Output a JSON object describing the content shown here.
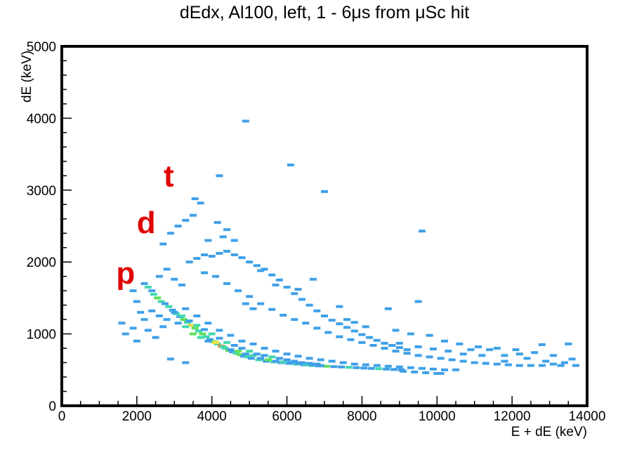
{
  "chart_data": {
    "type": "heatmap",
    "title": "dEdx, Al100, left, 1 - 6μs from μSc hit",
    "xlabel": "E + dE (keV)",
    "ylabel": "dE (keV)",
    "xlim": [
      0,
      14000
    ],
    "ylim": [
      0,
      5000
    ],
    "x_ticks": [
      "0",
      "2000",
      "4000",
      "6000",
      "8000",
      "10000",
      "12000",
      "14000"
    ],
    "y_ticks": [
      "0",
      "1000",
      "2000",
      "3000",
      "4000",
      "5000"
    ],
    "annotations": [
      {
        "text": "p",
        "x": 1700,
        "y": 1700
      },
      {
        "text": "d",
        "x": 2250,
        "y": 2400
      },
      {
        "text": "t",
        "x": 2850,
        "y": 3050
      }
    ],
    "color_scale": [
      "#3fa0e8",
      "#45d8b0",
      "#5ee05a",
      "#f0e040",
      "#f08a30",
      "#e83020"
    ],
    "bins": [
      [
        2200,
        1700,
        1
      ],
      [
        2300,
        1650,
        2
      ],
      [
        2400,
        1600,
        1
      ],
      [
        2450,
        1550,
        2
      ],
      [
        2550,
        1500,
        3
      ],
      [
        2650,
        1450,
        2
      ],
      [
        2750,
        1420,
        1
      ],
      [
        2850,
        1380,
        2
      ],
      [
        2950,
        1330,
        1
      ],
      [
        3050,
        1280,
        2
      ],
      [
        3150,
        1240,
        1
      ],
      [
        3250,
        1200,
        3
      ],
      [
        3350,
        1160,
        2
      ],
      [
        3450,
        1120,
        4
      ],
      [
        3550,
        1080,
        3
      ],
      [
        3650,
        1040,
        2
      ],
      [
        3750,
        1000,
        3
      ],
      [
        3850,
        960,
        2
      ],
      [
        3950,
        920,
        1
      ],
      [
        4050,
        890,
        3
      ],
      [
        4150,
        860,
        2
      ],
      [
        4250,
        830,
        5
      ],
      [
        4350,
        800,
        2
      ],
      [
        4450,
        770,
        3
      ],
      [
        4550,
        750,
        1
      ],
      [
        4650,
        730,
        2
      ],
      [
        4750,
        710,
        3
      ],
      [
        4850,
        690,
        1
      ],
      [
        4950,
        680,
        2
      ],
      [
        5050,
        660,
        1
      ],
      [
        5250,
        640,
        2
      ],
      [
        5450,
        620,
        1
      ],
      [
        5650,
        610,
        2
      ],
      [
        5850,
        600,
        1
      ],
      [
        6050,
        590,
        1
      ],
      [
        6250,
        580,
        2
      ],
      [
        6450,
        570,
        1
      ],
      [
        6650,
        560,
        2
      ],
      [
        6850,
        555,
        1
      ],
      [
        7050,
        550,
        3
      ],
      [
        7250,
        545,
        1
      ],
      [
        7450,
        540,
        1
      ],
      [
        7650,
        535,
        2
      ],
      [
        7850,
        530,
        1
      ],
      [
        8050,
        525,
        1
      ],
      [
        8250,
        520,
        1
      ],
      [
        8450,
        515,
        2
      ],
      [
        8650,
        510,
        1
      ],
      [
        8850,
        505,
        1
      ],
      [
        9050,
        500,
        1
      ],
      [
        3100,
        1150,
        1
      ],
      [
        3300,
        1100,
        2
      ],
      [
        3500,
        1000,
        3
      ],
      [
        3700,
        950,
        2
      ],
      [
        3900,
        900,
        1
      ],
      [
        4100,
        880,
        4
      ],
      [
        4300,
        820,
        2
      ],
      [
        4500,
        780,
        1
      ],
      [
        4700,
        760,
        3
      ],
      [
        4900,
        720,
        1
      ],
      [
        5100,
        700,
        2
      ],
      [
        5300,
        660,
        1
      ],
      [
        5500,
        640,
        3
      ],
      [
        5700,
        620,
        1
      ],
      [
        5900,
        610,
        2
      ],
      [
        6100,
        600,
        1
      ],
      [
        6300,
        590,
        1
      ],
      [
        6500,
        580,
        2
      ],
      [
        6700,
        570,
        1
      ],
      [
        6900,
        560,
        1
      ],
      [
        3000,
        1300,
        1
      ],
      [
        3200,
        1250,
        2
      ],
      [
        3400,
        1180,
        1
      ],
      [
        3600,
        1120,
        2
      ],
      [
        3800,
        1060,
        1
      ],
      [
        4000,
        1000,
        2
      ],
      [
        4200,
        940,
        1
      ],
      [
        4400,
        880,
        2
      ],
      [
        4600,
        840,
        1
      ],
      [
        4800,
        800,
        1
      ],
      [
        5000,
        760,
        2
      ],
      [
        5200,
        720,
        1
      ],
      [
        5400,
        700,
        1
      ],
      [
        5600,
        680,
        2
      ],
      [
        5800,
        660,
        1
      ],
      [
        6000,
        640,
        1
      ],
      [
        6200,
        620,
        1
      ],
      [
        6400,
        600,
        1
      ],
      [
        6600,
        590,
        1
      ],
      [
        6800,
        580,
        1
      ],
      [
        3300,
        1350,
        1
      ],
      [
        3600,
        1250,
        1
      ],
      [
        3900,
        1150,
        1
      ],
      [
        4200,
        1050,
        1
      ],
      [
        4500,
        980,
        1
      ],
      [
        4800,
        900,
        1
      ],
      [
        5100,
        860,
        1
      ],
      [
        5400,
        800,
        1
      ],
      [
        5700,
        760,
        1
      ],
      [
        6000,
        720,
        1
      ],
      [
        6300,
        690,
        1
      ],
      [
        6600,
        660,
        1
      ],
      [
        6900,
        640,
        1
      ],
      [
        7200,
        620,
        1
      ],
      [
        7500,
        600,
        1
      ],
      [
        7800,
        580,
        1
      ],
      [
        8100,
        570,
        1
      ],
      [
        8400,
        560,
        1
      ],
      [
        8700,
        550,
        1
      ],
      [
        9000,
        540,
        1
      ],
      [
        9300,
        530,
        1
      ],
      [
        9600,
        520,
        1
      ],
      [
        9900,
        510,
        1
      ],
      [
        10200,
        500,
        1
      ],
      [
        10500,
        500,
        1
      ],
      [
        10000,
        450,
        1
      ],
      [
        10100,
        450,
        1
      ],
      [
        9700,
        460,
        1
      ],
      [
        9400,
        470,
        1
      ],
      [
        9100,
        480,
        1
      ],
      [
        3400,
        2000,
        1
      ],
      [
        3600,
        2050,
        1
      ],
      [
        3800,
        2100,
        1
      ],
      [
        4000,
        2080,
        1
      ],
      [
        4200,
        2120,
        1
      ],
      [
        4400,
        2150,
        1
      ],
      [
        4600,
        2100,
        1
      ],
      [
        4800,
        2060,
        1
      ],
      [
        5000,
        2000,
        1
      ],
      [
        5200,
        1950,
        1
      ],
      [
        5400,
        1900,
        1
      ],
      [
        5600,
        1820,
        1
      ],
      [
        5800,
        1750,
        1
      ],
      [
        6000,
        1650,
        1
      ],
      [
        6200,
        1560,
        1
      ],
      [
        6400,
        1480,
        1
      ],
      [
        6600,
        1400,
        1
      ],
      [
        6800,
        1320,
        1
      ],
      [
        7000,
        1250,
        1
      ],
      [
        7200,
        1190,
        1
      ],
      [
        7400,
        1140,
        1
      ],
      [
        7600,
        1090,
        1
      ],
      [
        7800,
        1040,
        1
      ],
      [
        8000,
        990,
        1
      ],
      [
        8200,
        950,
        1
      ],
      [
        8400,
        910,
        1
      ],
      [
        8600,
        870,
        1
      ],
      [
        8800,
        840,
        1
      ],
      [
        9000,
        810,
        1
      ],
      [
        9200,
        780,
        1
      ],
      [
        3800,
        1850,
        1
      ],
      [
        4100,
        1800,
        1
      ],
      [
        4400,
        1700,
        1
      ],
      [
        4700,
        1600,
        1
      ],
      [
        5000,
        1520,
        1
      ],
      [
        5300,
        1420,
        1
      ],
      [
        5600,
        1340,
        1
      ],
      [
        5900,
        1260,
        1
      ],
      [
        6200,
        1200,
        1
      ],
      [
        6500,
        1150,
        1
      ],
      [
        6800,
        1080,
        1
      ],
      [
        7100,
        1020,
        1
      ],
      [
        7400,
        960,
        1
      ],
      [
        7700,
        920,
        1
      ],
      [
        8000,
        880,
        1
      ],
      [
        8300,
        840,
        1
      ],
      [
        8600,
        800,
        1
      ],
      [
        8900,
        760,
        1
      ],
      [
        9200,
        730,
        1
      ],
      [
        9500,
        700,
        1
      ],
      [
        9800,
        680,
        1
      ],
      [
        10100,
        660,
        1
      ],
      [
        10400,
        640,
        1
      ],
      [
        10700,
        620,
        1
      ],
      [
        11000,
        600,
        1
      ],
      [
        11300,
        590,
        1
      ],
      [
        11600,
        580,
        1
      ],
      [
        11900,
        570,
        1
      ],
      [
        12200,
        560,
        1
      ],
      [
        12500,
        560,
        1
      ],
      [
        12800,
        560,
        1
      ],
      [
        13100,
        580,
        1
      ],
      [
        13400,
        600,
        1
      ],
      [
        13700,
        560,
        1
      ],
      [
        13500,
        860,
        1
      ],
      [
        12800,
        850,
        1
      ],
      [
        12200,
        720,
        1
      ],
      [
        11800,
        700,
        1
      ],
      [
        11400,
        780,
        1
      ],
      [
        10900,
        780,
        1
      ],
      [
        2700,
        2250,
        1
      ],
      [
        2900,
        2400,
        1
      ],
      [
        3100,
        2500,
        1
      ],
      [
        3300,
        2580,
        1
      ],
      [
        3500,
        2650,
        1
      ],
      [
        3700,
        2820,
        1
      ],
      [
        3550,
        2880,
        1
      ],
      [
        4150,
        2550,
        1
      ],
      [
        4400,
        2450,
        1
      ],
      [
        4600,
        2300,
        1
      ],
      [
        4300,
        2350,
        1
      ],
      [
        3900,
        2300,
        1
      ],
      [
        4900,
        3960,
        1
      ],
      [
        6100,
        3350,
        1
      ],
      [
        4200,
        3200,
        1
      ],
      [
        7000,
        2980,
        1
      ],
      [
        9600,
        2430,
        1
      ],
      [
        9500,
        1450,
        1
      ],
      [
        8700,
        1350,
        1
      ],
      [
        7400,
        1380,
        1
      ],
      [
        1600,
        1150,
        1
      ],
      [
        1700,
        1000,
        1
      ],
      [
        1900,
        1080,
        1
      ],
      [
        2000,
        900,
        1
      ],
      [
        2100,
        1300,
        1
      ],
      [
        2200,
        1200,
        1
      ],
      [
        2300,
        1050,
        1
      ],
      [
        2500,
        950,
        1
      ],
      [
        2700,
        1100,
        1
      ],
      [
        2800,
        1200,
        1
      ],
      [
        1900,
        1600,
        1
      ],
      [
        2000,
        1450,
        1
      ],
      [
        2600,
        1800,
        1
      ],
      [
        2800,
        1900,
        1
      ],
      [
        3000,
        1760,
        1
      ],
      [
        3200,
        1680,
        1
      ],
      [
        2400,
        1320,
        1
      ],
      [
        2600,
        1250,
        1
      ],
      [
        2900,
        650,
        1
      ],
      [
        3300,
        600,
        1
      ],
      [
        5300,
        1880,
        1
      ],
      [
        5700,
        1680,
        1
      ],
      [
        6300,
        1620,
        1
      ],
      [
        6700,
        1760,
        1
      ],
      [
        4900,
        1420,
        1
      ],
      [
        5100,
        1350,
        1
      ],
      [
        7600,
        1200,
        1
      ],
      [
        7800,
        1160,
        1
      ],
      [
        8100,
        1100,
        1
      ],
      [
        8900,
        1050,
        1
      ],
      [
        9300,
        1000,
        1
      ],
      [
        9800,
        980,
        1
      ],
      [
        10200,
        900,
        1
      ],
      [
        10600,
        860,
        1
      ],
      [
        11100,
        820,
        1
      ],
      [
        11600,
        800,
        1
      ],
      [
        12100,
        780,
        1
      ],
      [
        12600,
        740,
        1
      ],
      [
        13100,
        700,
        1
      ],
      [
        13600,
        650,
        1
      ],
      [
        13300,
        560,
        1
      ],
      [
        12900,
        620,
        1
      ],
      [
        12400,
        660,
        1
      ],
      [
        11800,
        620,
        1
      ],
      [
        11200,
        700,
        1
      ],
      [
        10700,
        720,
        1
      ],
      [
        10300,
        760,
        1
      ],
      [
        9900,
        790,
        1
      ],
      [
        9500,
        820,
        1
      ],
      [
        9000,
        870,
        1
      ]
    ]
  }
}
